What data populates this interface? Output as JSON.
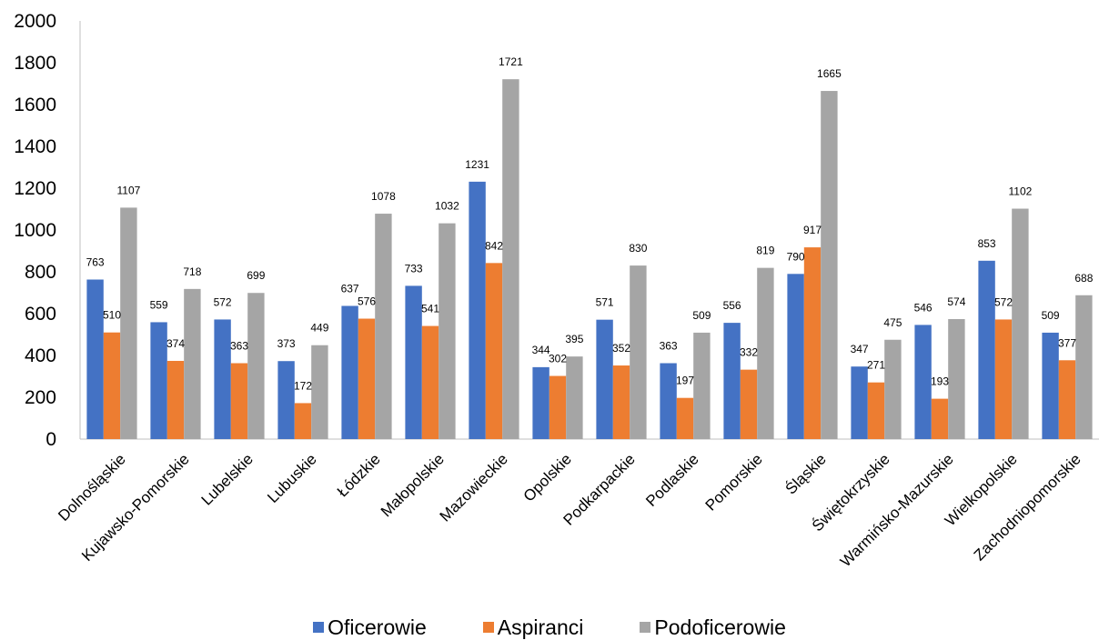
{
  "chart_data": {
    "type": "bar",
    "categories": [
      "Dolnośląskie",
      "Kujawsko-Pomorskie",
      "Lubelskie",
      "Lubuskie",
      "Łódzkie",
      "Małopolskie",
      "Mazowieckie",
      "Opolskie",
      "Podkarpackie",
      "Podlaskie",
      "Pomorskie",
      "Śląskie",
      "Świętokrzyskie",
      "Warmińsko-Mazurskie",
      "Wielkopolskie",
      "Zachodniopomorskie"
    ],
    "series": [
      {
        "name": "Oficerowie",
        "color": "#4472C4",
        "values": [
          763,
          559,
          572,
          373,
          637,
          733,
          1231,
          344,
          571,
          363,
          556,
          790,
          347,
          546,
          853,
          509
        ]
      },
      {
        "name": "Aspiranci",
        "color": "#ED7D31",
        "values": [
          510,
          374,
          363,
          172,
          576,
          541,
          842,
          302,
          352,
          197,
          332,
          917,
          271,
          193,
          572,
          377
        ]
      },
      {
        "name": "Podoficerowie",
        "color": "#A5A5A5",
        "values": [
          1107,
          718,
          699,
          449,
          1078,
          1032,
          1721,
          395,
          830,
          509,
          819,
          1665,
          475,
          574,
          1102,
          688
        ]
      }
    ],
    "yticks": [
      "0",
      "200",
      "400",
      "600",
      "800",
      "1000",
      "1200",
      "1400",
      "1600",
      "1800",
      "2000"
    ],
    "ylim": [
      0,
      2000
    ],
    "grid": false,
    "legend": "bottom",
    "title": "",
    "xlabel": "",
    "ylabel": ""
  }
}
